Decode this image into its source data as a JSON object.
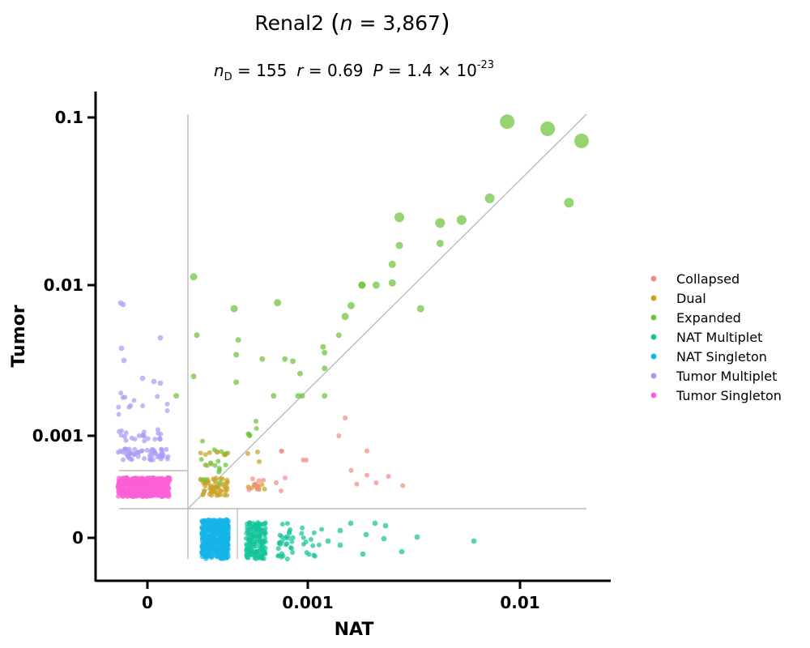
{
  "chart_data": {
    "type": "scatter",
    "title": "Renal2 (n = 3,867)",
    "subtitle": "n_D = 155  r = 0.69  P = 1.4 × 10^-23",
    "title_parts": {
      "name": "Renal2 ",
      "n_italic": "n",
      "n_value": " = 3,867"
    },
    "subtitle_parts": {
      "nd_italic": "n",
      "nd_sub": "D",
      "nd_value": " = 155",
      "r_italic": "r",
      "r_value": " = 0.69",
      "p_italic": "P",
      "p_value": " = 1.4 × 10",
      "p_exp": "-23"
    },
    "xlabel": "NAT",
    "ylabel": "Tumor",
    "x_ticks": [
      "0",
      "0.001",
      "0.01"
    ],
    "y_ticks": [
      "0",
      "0.001",
      "0.01",
      "0.1"
    ],
    "scale": "log with zero-inflated jitter bands",
    "legend": {
      "position": "right",
      "entries": [
        {
          "name": "Collapsed",
          "color": "#f28e7f"
        },
        {
          "name": "Dual",
          "color": "#c9a227"
        },
        {
          "name": "Expanded",
          "color": "#6cc43a"
        },
        {
          "name": "NAT Multiplet",
          "color": "#13c39a"
        },
        {
          "name": "NAT Singleton",
          "color": "#15b4e8"
        },
        {
          "name": "Tumor Multiplet",
          "color": "#a99cf5"
        },
        {
          "name": "Tumor Singleton",
          "color": "#fb5fd7"
        }
      ]
    },
    "expanded_points": [
      [
        0.0087,
        0.102
      ],
      [
        0.0135,
        0.092
      ],
      [
        0.0195,
        0.077
      ],
      [
        0.0072,
        0.033
      ],
      [
        0.017,
        0.031
      ],
      [
        0.0027,
        0.025
      ],
      [
        0.0042,
        0.023
      ],
      [
        0.0053,
        0.024
      ],
      [
        0.0027,
        0.0165
      ],
      [
        0.0042,
        0.017
      ],
      [
        0.0025,
        0.0125
      ],
      [
        0.0025,
        0.0095
      ],
      [
        0.0018,
        0.0092
      ],
      [
        0.0018,
        0.0092
      ],
      [
        0.0021,
        0.0092
      ],
      [
        0.0034,
        0.0065
      ],
      [
        0.0016,
        0.0068
      ],
      [
        0.0015,
        0.0058
      ],
      [
        0.0014,
        0.0044
      ],
      [
        0.00029,
        0.0104
      ],
      [
        0.00045,
        0.0065
      ],
      [
        0.00072,
        0.0071
      ],
      [
        0.0003,
        0.0044
      ],
      [
        0.00047,
        0.0041
      ],
      [
        0.00046,
        0.0033
      ],
      [
        0.00061,
        0.0031
      ],
      [
        0.00078,
        0.0031
      ],
      [
        0.00085,
        0.003
      ],
      [
        0.00118,
        0.0037
      ],
      [
        0.0012,
        0.0034
      ],
      [
        0.00092,
        0.0025
      ],
      [
        0.0012,
        0.0027
      ],
      [
        0.00029,
        0.0024
      ],
      [
        0.00046,
        0.0022
      ],
      [
        0.00069,
        0.0018
      ],
      [
        0.0009,
        0.0018
      ],
      [
        0.00094,
        0.0018
      ],
      [
        0.0012,
        0.0018
      ],
      [
        0.00024,
        0.0018
      ]
    ],
    "collapsed_points": [
      [
        0.0015,
        0.0013
      ],
      [
        0.0014,
        0.001
      ],
      [
        0.0019,
        0.0008
      ],
      [
        0.00075,
        0.0008
      ],
      [
        0.00095,
        0.0007
      ],
      [
        0.0016,
        0.0006
      ],
      [
        0.0019,
        0.00056
      ],
      [
        0.0024,
        0.00055
      ],
      [
        0.0021,
        0.0005
      ],
      [
        0.0017,
        0.00049
      ],
      [
        0.0028,
        0.00048
      ]
    ]
  },
  "colors": {
    "axis": "#000000",
    "guide": "#bbbbbb"
  }
}
